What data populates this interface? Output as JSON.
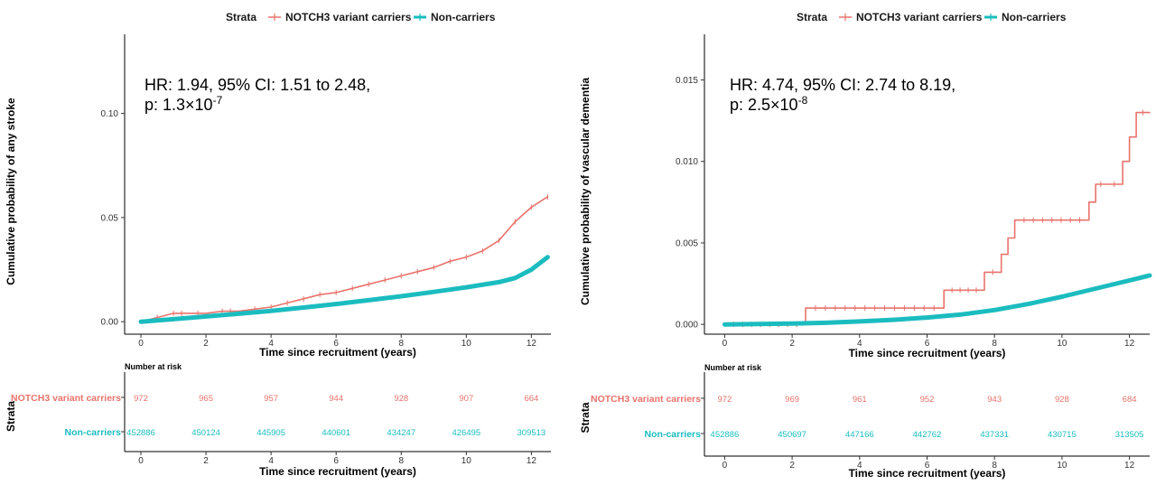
{
  "chart_data": [
    {
      "type": "line",
      "legend": {
        "title": "Strata",
        "entries": [
          "NOTCH3 variant carriers",
          "Non-carriers"
        ],
        "placement": "top"
      },
      "series": [
        {
          "name": "NOTCH3 variant carriers",
          "color": "#e8736c",
          "x": [
            0,
            0.5,
            1,
            1.5,
            2,
            2.5,
            3,
            3.5,
            4,
            4.5,
            5,
            5.5,
            6,
            6.5,
            7,
            7.5,
            8,
            8.5,
            9,
            9.5,
            10,
            10.5,
            11,
            11.5,
            12,
            12.5
          ],
          "y": [
            0,
            0.002,
            0.004,
            0.004,
            0.004,
            0.005,
            0.005,
            0.006,
            0.007,
            0.009,
            0.011,
            0.013,
            0.014,
            0.016,
            0.018,
            0.02,
            0.022,
            0.024,
            0.026,
            0.029,
            0.031,
            0.034,
            0.039,
            0.048,
            0.055,
            0.06
          ]
        },
        {
          "name": "Non-carriers",
          "color": "#1bbcbf",
          "x": [
            0,
            1,
            2,
            3,
            4,
            5,
            6,
            7,
            8,
            9,
            10,
            11,
            11.5,
            12,
            12.5
          ],
          "y": [
            0,
            0.0012,
            0.0025,
            0.0038,
            0.0052,
            0.0068,
            0.0085,
            0.0103,
            0.0122,
            0.0143,
            0.0165,
            0.019,
            0.021,
            0.025,
            0.031
          ]
        }
      ],
      "annotation": {
        "line1": "HR: 1.94, 95% CI: 1.51 to 2.48,",
        "line2_prefix": "p: 1.3×10",
        "line2_exp": "-7"
      },
      "ylabel": "Cumulative probability of any stroke",
      "xlabel": "Time since recruitment (years)",
      "xlim": [
        -0.5,
        12.6
      ],
      "ylim": [
        -0.006,
        0.138
      ],
      "xticks": [
        0,
        2,
        4,
        6,
        8,
        10,
        12
      ],
      "yticks": [
        0,
        0.05,
        0.1
      ],
      "ytick_labels": [
        "0.00",
        "0.05",
        "0.10"
      ],
      "grid": false,
      "risk_table": {
        "title": "Number at risk",
        "y_title": "Strata",
        "xlabel": "Time since recruitment (years)",
        "times": [
          0,
          2,
          4,
          6,
          8,
          10,
          12
        ],
        "rows": [
          {
            "label": "NOTCH3 variant carriers",
            "color": "#e8736c",
            "values": [
              "972",
              "965",
              "957",
              "944",
              "928",
              "907",
              "664"
            ]
          },
          {
            "label": "Non-carriers",
            "color": "#1bbcbf",
            "values": [
              "452886",
              "450124",
              "445905",
              "440601",
              "434247",
              "426495",
              "309513"
            ]
          }
        ]
      }
    },
    {
      "type": "line",
      "legend": {
        "title": "Strata",
        "entries": [
          "NOTCH3 variant carriers",
          "Non-carriers"
        ],
        "placement": "top"
      },
      "series": [
        {
          "name": "NOTCH3 variant carriers",
          "color": "#e8736c",
          "step": true,
          "x": [
            0,
            2.4,
            2.4,
            6.5,
            6.5,
            7.7,
            7.7,
            8.2,
            8.2,
            8.4,
            8.4,
            8.6,
            8.6,
            10.8,
            10.8,
            11.0,
            11.0,
            11.3,
            11.3,
            11.8,
            11.8,
            12.0,
            12.0,
            12.2,
            12.2,
            12.6
          ],
          "y": [
            0,
            0,
            0.001,
            0.001,
            0.0021,
            0.0021,
            0.0032,
            0.0032,
            0.0043,
            0.0043,
            0.0053,
            0.0053,
            0.0064,
            0.0064,
            0.0075,
            0.0075,
            0.0086,
            0.0086,
            0.0086,
            0.0086,
            0.01,
            0.01,
            0.0115,
            0.0115,
            0.013,
            0.013
          ]
        },
        {
          "name": "Non-carriers",
          "color": "#1bbcbf",
          "x": [
            0,
            1,
            2,
            3,
            4,
            5,
            6,
            7,
            8,
            9,
            10,
            11,
            12,
            12.6
          ],
          "y": [
            0,
            2e-05,
            5e-05,
            0.0001,
            0.00018,
            0.00028,
            0.00042,
            0.0006,
            0.00088,
            0.00125,
            0.0017,
            0.0022,
            0.0027,
            0.003
          ]
        }
      ],
      "annotation": {
        "line1": "HR: 4.74, 95% CI: 2.74 to 8.19,",
        "line2_prefix": "p: 2.5×10",
        "line2_exp": "-8"
      },
      "ylabel": "Cumulative probability of vascular dementia",
      "xlabel": "Time since recruitment (years)",
      "xlim": [
        -0.6,
        12.6
      ],
      "ylim": [
        -0.0006,
        0.0178
      ],
      "xticks": [
        0,
        2,
        4,
        6,
        8,
        10,
        12
      ],
      "yticks": [
        0,
        0.005,
        0.01,
        0.015
      ],
      "ytick_labels": [
        "0.000",
        "0.005",
        "0.010",
        "0.015"
      ],
      "grid": false,
      "risk_table": {
        "title": "Number at risk",
        "y_title": "Strata",
        "xlabel": "Time since recruitment (years)",
        "times": [
          0,
          2,
          4,
          6,
          8,
          10,
          12
        ],
        "rows": [
          {
            "label": "NOTCH3 variant carriers",
            "color": "#e8736c",
            "values": [
              "972",
              "969",
              "961",
              "952",
              "943",
              "928",
              "684"
            ]
          },
          {
            "label": "Non-carriers",
            "color": "#1bbcbf",
            "values": [
              "452886",
              "450697",
              "447166",
              "442762",
              "437331",
              "430715",
              "313505"
            ]
          }
        ]
      }
    }
  ]
}
